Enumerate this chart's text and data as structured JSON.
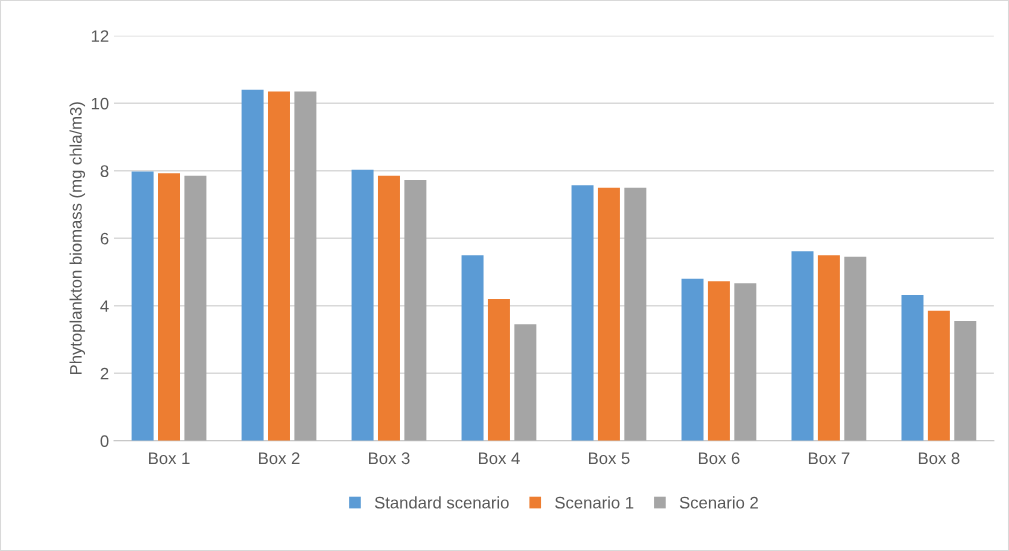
{
  "chart_data": {
    "type": "bar",
    "ylabel": "Phytoplankton biomass (mg chla/m3)",
    "categories": [
      "Box 1",
      "Box 2",
      "Box 3",
      "Box 4",
      "Box 5",
      "Box 6",
      "Box 7",
      "Box 8"
    ],
    "series": [
      {
        "name": "Standard scenario",
        "color": "#5b9bd5",
        "values": [
          7.98,
          10.4,
          8.03,
          5.5,
          7.57,
          4.8,
          5.62,
          4.32
        ]
      },
      {
        "name": "Scenario 1",
        "color": "#ed7d31",
        "values": [
          7.93,
          10.35,
          7.85,
          4.2,
          7.5,
          4.73,
          5.5,
          3.85
        ]
      },
      {
        "name": "Scenario 2",
        "color": "#a5a5a5",
        "values": [
          7.85,
          10.35,
          7.73,
          3.45,
          7.5,
          4.67,
          5.45,
          3.55
        ]
      }
    ],
    "ylim": [
      0,
      12
    ],
    "yticks": [
      0,
      2,
      4,
      6,
      8,
      10,
      12
    ],
    "grid": "y",
    "legend": "bottom"
  }
}
